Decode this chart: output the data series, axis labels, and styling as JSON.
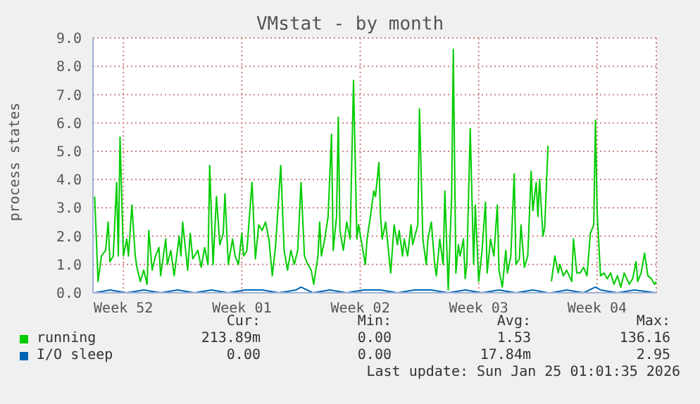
{
  "chart_data": {
    "type": "line",
    "title": "VMstat - by month",
    "ylabel": "process states",
    "xlim": [
      "2025-12-23T00:00",
      "2026-01-25T07:12"
    ],
    "xticks": [
      {
        "value": "2025-12-24T19:12",
        "label": "Week 52"
      },
      {
        "value": "2025-12-31T19:12",
        "label": "Week 01"
      },
      {
        "value": "2026-01-07T19:12",
        "label": "Week 02"
      },
      {
        "value": "2026-01-14T19:12",
        "label": "Week 03"
      },
      {
        "value": "2026-01-21T19:12",
        "label": "Week 04"
      }
    ],
    "ylim": [
      0,
      9
    ],
    "yticks": [
      {
        "value": 0,
        "label": "0.0"
      },
      {
        "value": 1,
        "label": "1.0"
      },
      {
        "value": 2,
        "label": "2.0"
      },
      {
        "value": 3,
        "label": "3.0"
      },
      {
        "value": 4,
        "label": "4.0"
      },
      {
        "value": 5,
        "label": "5.0"
      },
      {
        "value": 6,
        "label": "6.0"
      },
      {
        "value": 7,
        "label": "7.0"
      },
      {
        "value": 8,
        "label": "8.0"
      },
      {
        "value": 9,
        "label": "9.0"
      }
    ],
    "grid": true,
    "legend": "bottom",
    "marker": "none",
    "line_style": "solid",
    "series": [
      {
        "name": "running",
        "color": "#00cc00",
        "x": [
          "2025-12-23T02:24",
          "2025-12-23T07:12",
          "2025-12-23T12:00",
          "2025-12-23T18:00",
          "2025-12-23T21:36",
          "2025-12-24T00:00",
          "2025-12-24T04:48",
          "2025-12-24T09:36",
          "2025-12-24T12:00",
          "2025-12-24T14:24",
          "2025-12-24T19:12",
          "2025-12-25T00:00",
          "2025-12-25T02:24",
          "2025-12-25T07:12",
          "2025-12-25T12:00",
          "2025-12-25T14:24",
          "2025-12-25T19:12",
          "2025-12-26T00:00",
          "2025-12-26T04:48",
          "2025-12-26T07:12",
          "2025-12-26T12:00",
          "2025-12-26T16:48",
          "2025-12-26T21:36",
          "2025-12-27T00:00",
          "2025-12-27T07:12",
          "2025-12-27T09:36",
          "2025-12-27T14:24",
          "2025-12-27T19:12",
          "2025-12-28T02:24",
          "2025-12-28T04:48",
          "2025-12-28T07:12",
          "2025-12-28T14:24",
          "2025-12-28T18:00",
          "2025-12-28T21:36",
          "2025-12-29T04:48",
          "2025-12-29T09:36",
          "2025-12-29T14:24",
          "2025-12-29T19:12",
          "2025-12-29T21:36",
          "2025-12-30T02:24",
          "2025-12-30T07:12",
          "2025-12-30T12:00",
          "2025-12-30T16:48",
          "2025-12-30T19:12",
          "2025-12-31T00:00",
          "2025-12-31T06:00",
          "2025-12-31T09:36",
          "2025-12-31T14:24",
          "2025-12-31T19:12",
          "2025-12-31T21:36",
          "2026-01-01T02:24",
          "2026-01-01T09:36",
          "2026-01-01T14:24",
          "2026-01-01T19:12",
          "2026-01-02T00:00",
          "2026-01-02T04:48",
          "2026-01-02T09:36",
          "2026-01-02T14:24",
          "2026-01-02T19:12",
          "2026-01-03T02:24",
          "2026-01-03T07:12",
          "2026-01-03T12:00",
          "2026-01-03T16:48",
          "2026-01-03T21:36",
          "2026-01-04T02:24",
          "2026-01-04T07:12",
          "2026-01-04T12:00",
          "2026-01-04T16:48",
          "2026-01-04T21:36",
          "2026-01-05T01:12",
          "2026-01-05T07:12",
          "2026-01-05T09:36",
          "2026-01-05T12:00",
          "2026-01-05T16:48",
          "2026-01-05T21:36",
          "2026-01-06T02:24",
          "2026-01-06T04:48",
          "2026-01-06T09:36",
          "2026-01-06T12:00",
          "2026-01-06T14:24",
          "2026-01-06T19:12",
          "2026-01-07T00:00",
          "2026-01-07T04:48",
          "2026-01-07T09:36",
          "2026-01-07T14:24",
          "2026-01-07T16:48",
          "2026-01-07T21:36",
          "2026-01-08T02:24",
          "2026-01-08T04:48",
          "2026-01-08T09:36",
          "2026-01-08T14:24",
          "2026-01-08T16:48",
          "2026-01-08T21:36",
          "2026-01-09T00:00",
          "2026-01-09T02:24",
          "2026-01-09T07:12",
          "2026-01-09T12:00",
          "2026-01-09T14:24",
          "2026-01-09T19:12",
          "2026-01-10T00:00",
          "2026-01-10T02:24",
          "2026-01-10T07:12",
          "2026-01-10T09:36",
          "2026-01-10T14:24",
          "2026-01-10T19:12",
          "2026-01-10T21:36",
          "2026-01-11T04:48",
          "2026-01-11T07:12",
          "2026-01-11T12:00",
          "2026-01-11T16:48",
          "2026-01-11T19:12",
          "2026-01-12T00:00",
          "2026-01-12T04:48",
          "2026-01-12T07:12",
          "2026-01-12T12:00",
          "2026-01-12T16:48",
          "2026-01-12T19:12",
          "2026-01-13T00:00",
          "2026-01-13T04:48",
          "2026-01-13T07:12",
          "2026-01-13T10:48",
          "2026-01-13T14:24",
          "2026-01-13T16:48",
          "2026-01-13T21:36",
          "2026-01-14T00:00",
          "2026-01-14T02:24",
          "2026-01-14T07:12",
          "2026-01-14T12:00",
          "2026-01-14T14:24",
          "2026-01-14T19:12",
          "2026-01-15T00:00",
          "2026-01-15T04:48",
          "2026-01-15T07:12",
          "2026-01-15T12:00",
          "2026-01-15T16:48",
          "2026-01-15T21:36",
          "2026-01-16T00:00",
          "2026-01-16T04:48",
          "2026-01-16T09:36",
          "2026-01-16T12:00",
          "2026-01-16T16:48",
          "2026-01-16T21:36",
          "2026-01-17T00:00",
          "2026-01-17T04:48",
          "2026-01-17T07:12",
          "2026-01-17T12:00",
          "2026-01-17T16:48",
          "2026-01-17T21:36",
          "2026-01-18T00:00",
          "2026-01-18T04:48",
          "2026-01-18T07:12",
          "2026-01-18T09:36",
          "2026-01-18T14:24",
          "2026-01-18T16:48",
          "2026-01-18T21:36",
          "2026-01-19T00:00",
          "2026-01-19T02:24",
          "2026-01-19T07:12",
          "2026-01-19T12:00",
          "2026-01-19T14:24",
          "2026-01-19T19:12",
          "2026-01-20T00:00",
          "2026-01-20T07:12",
          "2026-01-20T09:36",
          "2026-01-20T14:24",
          "2026-01-20T19:12",
          "2026-01-21T00:00",
          "2026-01-21T04:48",
          "2026-01-21T09:36",
          "2026-01-21T14:24",
          "2026-01-21T16:48",
          "2026-01-21T19:12",
          "2026-01-22T00:00",
          "2026-01-22T04:48",
          "2026-01-22T09:36",
          "2026-01-22T14:24",
          "2026-01-22T19:12",
          "2026-01-23T00:00",
          "2026-01-23T04:48",
          "2026-01-23T09:36",
          "2026-01-23T16:48",
          "2026-01-23T21:36",
          "2026-01-24T02:24",
          "2026-01-24T04:48",
          "2026-01-24T09:36",
          "2026-01-24T14:24",
          "2026-01-24T19:12",
          "2026-01-25T00:00",
          "2026-01-25T04:48",
          "2026-01-25T07:12"
        ],
        "values": [
          3.4,
          0.4,
          1.3,
          1.5,
          2.5,
          1.1,
          1.3,
          3.9,
          1.3,
          5.5,
          1.3,
          1.9,
          1.3,
          3.1,
          1.3,
          0.9,
          0.4,
          0.8,
          0.3,
          2.2,
          0.8,
          1.3,
          1.6,
          0.6,
          1.9,
          1.0,
          1.5,
          0.6,
          2.0,
          1.3,
          2.5,
          0.8,
          2.1,
          1.2,
          1.5,
          0.9,
          1.6,
          1.0,
          4.5,
          1.0,
          3.4,
          1.7,
          2.1,
          3.5,
          1.0,
          1.9,
          1.3,
          1.0,
          2.1,
          1.3,
          1.5,
          3.9,
          1.2,
          2.4,
          2.2,
          2.5,
          1.9,
          0.6,
          1.7,
          4.5,
          1.5,
          0.8,
          1.5,
          1.0,
          1.5,
          3.9,
          1.3,
          1.0,
          0.8,
          0.3,
          1.3,
          2.5,
          1.3,
          1.9,
          2.7,
          5.6,
          1.5,
          2.7,
          6.2,
          2.2,
          1.5,
          2.5,
          1.9,
          7.5,
          1.9,
          2.4,
          1.7,
          1.0,
          1.9,
          2.7,
          3.6,
          3.4,
          4.6,
          2.7,
          1.9,
          2.5,
          1.3,
          0.7,
          2.4,
          1.7,
          2.2,
          1.3,
          1.9,
          1.3,
          2.4,
          1.7,
          2.4,
          6.5,
          1.9,
          1.0,
          1.9,
          2.5,
          1.0,
          0.6,
          1.9,
          1.0,
          3.6,
          0.1,
          3.4,
          8.6,
          0.7,
          1.7,
          1.3,
          1.9,
          0.5,
          1.0,
          5.8,
          1.0,
          3.1,
          0.4,
          1.5,
          3.2,
          0.7,
          1.9,
          1.3,
          3.1,
          0.8,
          0.2,
          1.5,
          0.7,
          1.3,
          4.2,
          1.0,
          1.2,
          2.4,
          0.9,
          1.3,
          4.3,
          2.9,
          3.9,
          2.7,
          4.0,
          2.0,
          2.3,
          5.2,
          null,
          0.4,
          1.3,
          0.7,
          1.0,
          0.6,
          0.8,
          0.4,
          1.9,
          0.7,
          0.7,
          0.9,
          0.6,
          2.1,
          2.4,
          6.1,
          2.9,
          0.6,
          0.7,
          0.5,
          0.7,
          0.3,
          0.6,
          0.2,
          0.7,
          0.3,
          0.5,
          1.1,
          0.4,
          0.7,
          1.4,
          0.6,
          0.5,
          0.3,
          0.4
        ]
      },
      {
        "name": "I/O sleep",
        "color": "#0066b3",
        "x": [
          "2025-12-23T02:24",
          "2025-12-24T00:00",
          "2025-12-25T00:00",
          "2025-12-26T00:00",
          "2025-12-27T00:00",
          "2025-12-28T00:00",
          "2025-12-29T00:00",
          "2025-12-30T00:00",
          "2025-12-31T00:00",
          "2026-01-01T00:00",
          "2026-01-02T00:00",
          "2026-01-03T00:00",
          "2026-01-04T00:00",
          "2026-01-04T07:12",
          "2026-01-05T00:00",
          "2026-01-06T00:00",
          "2026-01-07T00:00",
          "2026-01-08T00:00",
          "2026-01-09T00:00",
          "2026-01-10T00:00",
          "2026-01-11T00:00",
          "2026-01-12T00:00",
          "2026-01-13T00:00",
          "2026-01-14T00:00",
          "2026-01-15T00:00",
          "2026-01-16T00:00",
          "2026-01-17T00:00",
          "2026-01-18T00:00",
          "2026-01-18T21:36",
          "2026-01-19T00:00",
          "2026-01-19T02:24",
          "2026-01-20T00:00",
          "2026-01-21T00:00",
          "2026-01-21T16:48",
          "2026-01-22T00:00",
          "2026-01-23T00:00",
          "2026-01-24T00:00",
          "2026-01-25T07:12"
        ],
        "values": [
          0.0,
          0.1,
          0.0,
          0.1,
          0.0,
          0.1,
          0.0,
          0.1,
          0.0,
          0.1,
          0.1,
          0.0,
          0.1,
          0.2,
          0.0,
          0.1,
          0.0,
          0.1,
          0.1,
          0.0,
          0.1,
          0.1,
          0.0,
          0.1,
          0.0,
          0.1,
          0.0,
          0.1,
          0.0,
          null,
          0.0,
          0.1,
          0.0,
          0.2,
          0.1,
          0.0,
          0.1,
          0.0
        ]
      }
    ],
    "annotations": [
      "Cur:",
      "Min:",
      "Avg:",
      "Max:",
      "213.89m",
      "0.00",
      "1.53",
      "136.16",
      "0.00",
      "0.00",
      "17.84m",
      "2.95",
      "Last update: Sun Jan 25 01:01:35 2026"
    ]
  }
}
